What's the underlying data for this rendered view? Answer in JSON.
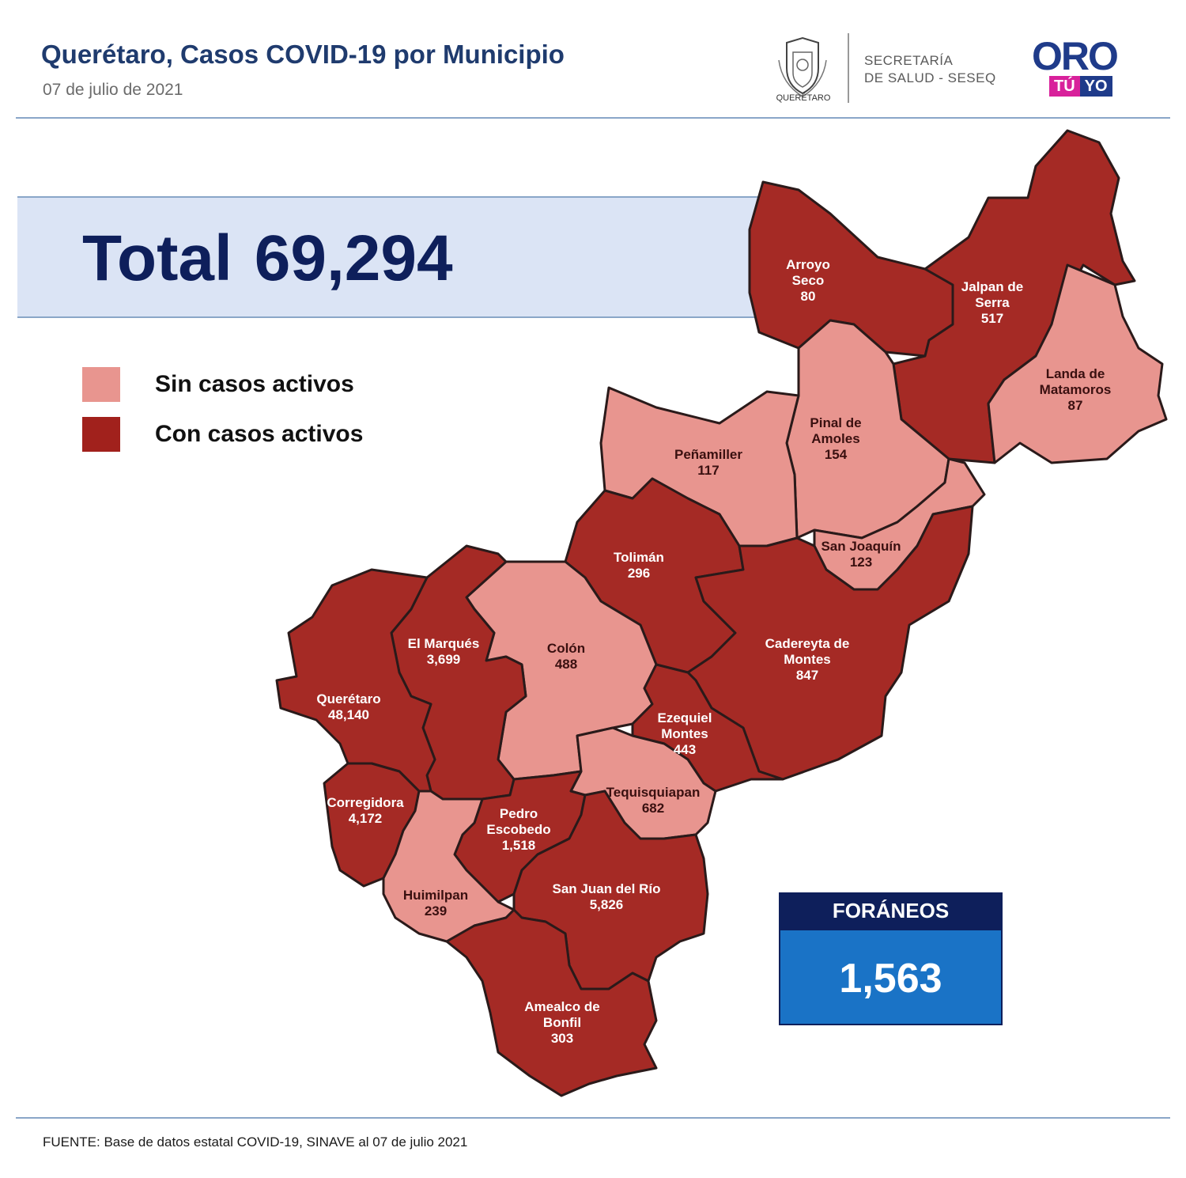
{
  "header": {
    "title": "Querétaro, Casos COVID-19 por Municipio",
    "date": "07 de julio  de 2021"
  },
  "logos": {
    "seal_caption": "QUERÉTARO",
    "secretaria_line1": "SECRETARÍA",
    "secretaria_line2": "DE SALUD - SESEQ",
    "oro": "ORO",
    "tu": "TÚ",
    "yo": "YO"
  },
  "total": {
    "label": "Total",
    "value": "69,294"
  },
  "legend": {
    "items": [
      {
        "label": "Sin casos activos",
        "color": "#e8958f"
      },
      {
        "label": "Con casos activos",
        "color": "#a1211c"
      }
    ]
  },
  "colors": {
    "active": "#a52a25",
    "inactive": "#e8958f"
  },
  "municipios": [
    {
      "name_lines": [
        "Arroyo",
        "Seco"
      ],
      "cases": "80",
      "status": "active"
    },
    {
      "name_lines": [
        "Jalpan de",
        "Serra"
      ],
      "cases": "517",
      "status": "active"
    },
    {
      "name_lines": [
        "Landa de",
        "Matamoros"
      ],
      "cases": "87",
      "status": "inactive"
    },
    {
      "name_lines": [
        "Pinal de",
        "Amoles"
      ],
      "cases": "154",
      "status": "inactive"
    },
    {
      "name_lines": [
        "Peñamiller"
      ],
      "cases": "117",
      "status": "inactive"
    },
    {
      "name_lines": [
        "San Joaquín"
      ],
      "cases": "123",
      "status": "inactive"
    },
    {
      "name_lines": [
        "Tolimán"
      ],
      "cases": "296",
      "status": "active"
    },
    {
      "name_lines": [
        "Cadereyta de",
        "Montes"
      ],
      "cases": "847",
      "status": "active"
    },
    {
      "name_lines": [
        "Colón"
      ],
      "cases": "488",
      "status": "inactive"
    },
    {
      "name_lines": [
        "El  Marqués"
      ],
      "cases": "3,699",
      "status": "active"
    },
    {
      "name_lines": [
        "Querétaro"
      ],
      "cases": "48,140",
      "status": "active"
    },
    {
      "name_lines": [
        "Ezequiel",
        "Montes"
      ],
      "cases": "443",
      "status": "active"
    },
    {
      "name_lines": [
        "Tequisquiapan"
      ],
      "cases": "682",
      "status": "inactive"
    },
    {
      "name_lines": [
        "Corregidora"
      ],
      "cases": "4,172",
      "status": "active"
    },
    {
      "name_lines": [
        "Pedro",
        "Escobedo"
      ],
      "cases": "1,518",
      "status": "active"
    },
    {
      "name_lines": [
        "Huimilpan"
      ],
      "cases": "239",
      "status": "inactive"
    },
    {
      "name_lines": [
        "San Juan del Río"
      ],
      "cases": "5,826",
      "status": "active"
    },
    {
      "name_lines": [
        "Amealco de",
        "Bonfil"
      ],
      "cases": "303",
      "status": "active"
    }
  ],
  "foraneos": {
    "label": "FORÁNEOS",
    "value": "1,563"
  },
  "footer": {
    "source": "FUENTE:  Base de datos estatal COVID-19,  SINAVE  al 07 de julio 2021"
  }
}
